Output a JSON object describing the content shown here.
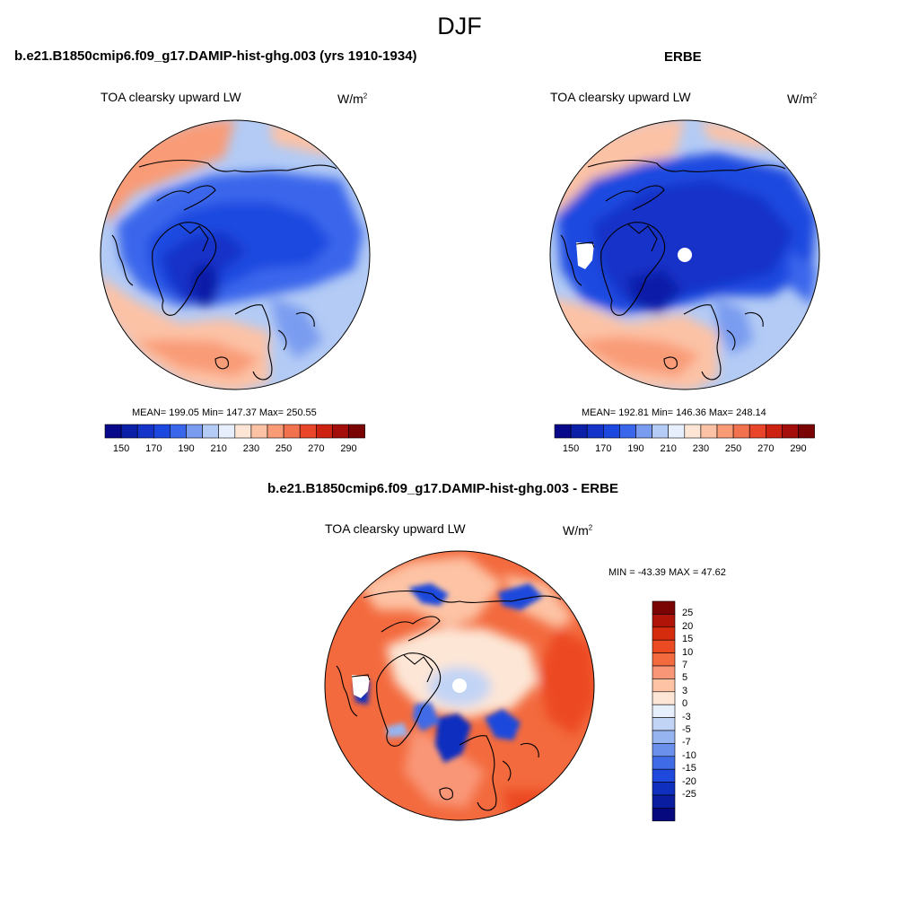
{
  "main_title": "DJF",
  "panels": {
    "model": {
      "title": "b.e21.B1850cmip6.f09_g17.DAMIP-hist-ghg.003 (yrs 1910-1934)",
      "subtitle": "TOA clearsky upward LW",
      "units_base": "W/m",
      "units_exp": "2",
      "stats": "MEAN= 199.05  Min= 147.37  Max= 250.55"
    },
    "obs": {
      "title": "ERBE",
      "subtitle": "TOA clearsky upward LW",
      "units_base": "W/m",
      "units_exp": "2",
      "stats": "MEAN= 192.81  Min= 146.36  Max= 248.14"
    },
    "diff": {
      "title": "b.e21.B1850cmip6.f09_g17.DAMIP-hist-ghg.003 - ERBE",
      "subtitle": "TOA clearsky upward LW",
      "units_base": "W/m",
      "units_exp": "2",
      "stats": "MIN = -43.39 MAX =  47.62"
    }
  },
  "colorbars": {
    "abs": {
      "colors": [
        "#08088a",
        "#0c1fa8",
        "#1433c8",
        "#1d48e0",
        "#3a66ec",
        "#7a9cf0",
        "#b3cbf5",
        "#e8effc",
        "#fde6d6",
        "#fcc2a6",
        "#f99b77",
        "#f2714e",
        "#e8452a",
        "#cc2211",
        "#a30e0a",
        "#7a0404"
      ],
      "labels": [
        "150",
        "170",
        "190",
        "210",
        "230",
        "250",
        "270",
        "290"
      ]
    },
    "diff": {
      "colors": [
        "#7a0404",
        "#b01408",
        "#d62c0e",
        "#ec4a22",
        "#f36a3e",
        "#f99677",
        "#fdc3a4",
        "#fde6d6",
        "#e8effc",
        "#c2d4f5",
        "#96b4f0",
        "#6a90ec",
        "#3f6be6",
        "#1f48dc",
        "#0f2fbf",
        "#0a1da0",
        "#06097e"
      ],
      "labels": [
        "25",
        "20",
        "15",
        "10",
        "7",
        "5",
        "3",
        "0",
        "-3",
        "-5",
        "-7",
        "-10",
        "-15",
        "-20",
        "-25"
      ]
    }
  }
}
